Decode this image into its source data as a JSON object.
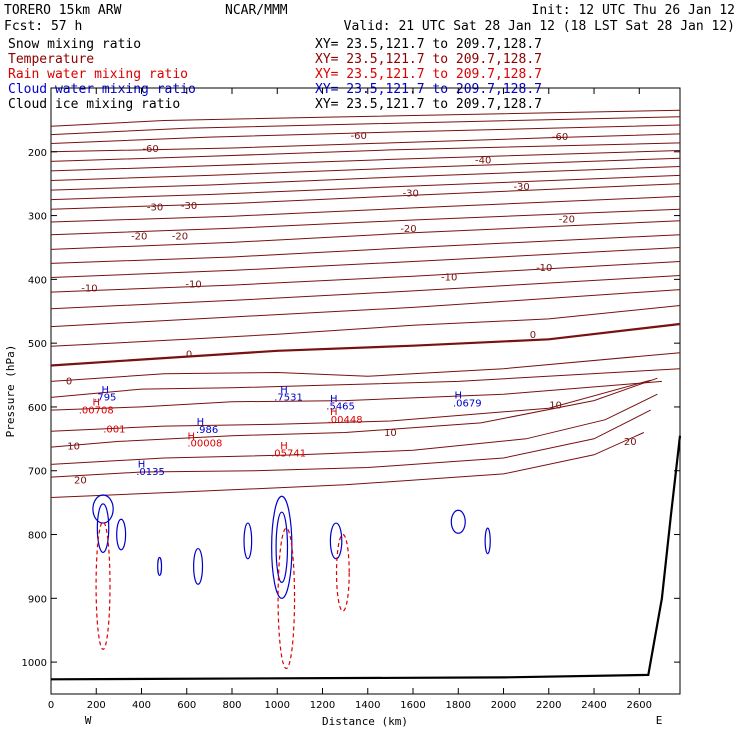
{
  "header": {
    "model": "TORERO  15km ARW",
    "center": "NCAR/MMM",
    "init": "Init: 12 UTC Thu 26 Jan 12",
    "fcst": "Fcst:   57 h",
    "valid": "Valid: 21 UTC Sat 28 Jan 12 (18 LST Sat 28 Jan 12)"
  },
  "fields": [
    {
      "name": "Snow mixing ratio",
      "xy": "XY=  23.5,121.7 to 209.7,128.7",
      "color": "#000000"
    },
    {
      "name": "Temperature",
      "xy": "XY=  23.5,121.7 to 209.7,128.7",
      "color": "#8b0000"
    },
    {
      "name": "Rain water mixing ratio",
      "xy": "XY=  23.5,121.7 to 209.7,128.7",
      "color": "#dd0000"
    },
    {
      "name": "Cloud water mixing ratio",
      "xy": "XY=  23.5,121.7 to 209.7,128.7",
      "color": "#0000cc"
    },
    {
      "name": "Cloud ice mixing ratio",
      "xy": "XY=  23.5,121.7 to 209.7,128.7",
      "color": "#000000"
    }
  ],
  "chart_data": {
    "type": "contour",
    "xlabel": "Distance (km)",
    "ylabel": "Pressure (hPa)",
    "xlim": [
      0,
      2780
    ],
    "ylim": [
      1050,
      100
    ],
    "xticks": [
      "0",
      "200",
      "400",
      "600",
      "800",
      "1000",
      "1200",
      "1400",
      "1600",
      "1800",
      "2000",
      "2200",
      "2400",
      "2600"
    ],
    "yticks": [
      "200",
      "300",
      "400",
      "500",
      "600",
      "700",
      "800",
      "900",
      "1000"
    ],
    "x_end_labels": {
      "left": "W",
      "right": "E"
    },
    "temperature_contours": [
      {
        "pts": [
          [
            0,
            200
          ],
          [
            800,
            194
          ],
          [
            1500,
            186
          ],
          [
            2200,
            178
          ],
          [
            2780,
            172
          ]
        ]
      },
      {
        "pts": [
          [
            0,
            187
          ],
          [
            700,
            177
          ],
          [
            1400,
            170
          ],
          [
            2780,
            158
          ]
        ]
      },
      {
        "pts": [
          [
            0,
            173
          ],
          [
            600,
            163
          ],
          [
            1300,
            157
          ],
          [
            2780,
            145
          ]
        ]
      },
      {
        "pts": [
          [
            0,
            160
          ],
          [
            500,
            151
          ],
          [
            1200,
            146
          ],
          [
            2780,
            135
          ]
        ]
      },
      {
        "pts": [
          [
            0,
            215
          ],
          [
            700,
            207
          ],
          [
            1500,
            197
          ],
          [
            2780,
            186
          ]
        ],
        "label": "-60",
        "at": [
          [
            440,
            196
          ],
          [
            1360,
            175
          ],
          [
            2250,
            177
          ]
        ]
      },
      {
        "pts": [
          [
            0,
            230
          ],
          [
            700,
            222
          ],
          [
            1500,
            212
          ],
          [
            2780,
            198
          ]
        ]
      },
      {
        "pts": [
          [
            0,
            245
          ],
          [
            700,
            237
          ],
          [
            1500,
            226
          ],
          [
            2780,
            210
          ]
        ]
      },
      {
        "pts": [
          [
            0,
            260
          ],
          [
            700,
            252
          ],
          [
            1500,
            240
          ],
          [
            2780,
            223
          ]
        ],
        "label": "-40",
        "at": [
          [
            1910,
            214
          ]
        ]
      },
      {
        "pts": [
          [
            0,
            275
          ],
          [
            700,
            267
          ],
          [
            1500,
            255
          ],
          [
            2780,
            237
          ]
        ]
      },
      {
        "pts": [
          [
            0,
            290
          ],
          [
            800,
            281
          ],
          [
            1600,
            268
          ],
          [
            2780,
            250
          ]
        ],
        "label": "-30",
        "at": [
          [
            460,
            287
          ],
          [
            610,
            285
          ],
          [
            1590,
            265
          ],
          [
            2080,
            255
          ]
        ]
      },
      {
        "pts": [
          [
            0,
            310
          ],
          [
            800,
            301
          ],
          [
            1600,
            288
          ],
          [
            2780,
            270
          ]
        ]
      },
      {
        "pts": [
          [
            0,
            330
          ],
          [
            800,
            320
          ],
          [
            1600,
            307
          ],
          [
            2780,
            290
          ]
        ]
      },
      {
        "pts": [
          [
            0,
            353
          ],
          [
            800,
            342
          ],
          [
            1600,
            327
          ],
          [
            2780,
            308
          ]
        ],
        "label": "-20",
        "at": [
          [
            390,
            333
          ],
          [
            570,
            333
          ],
          [
            1580,
            321
          ],
          [
            2280,
            306
          ]
        ]
      },
      {
        "pts": [
          [
            0,
            375
          ],
          [
            800,
            365
          ],
          [
            1600,
            350
          ],
          [
            2780,
            330
          ]
        ]
      },
      {
        "pts": [
          [
            0,
            397
          ],
          [
            800,
            386
          ],
          [
            1600,
            372
          ],
          [
            2780,
            350
          ]
        ]
      },
      {
        "pts": [
          [
            0,
            420
          ],
          [
            800,
            409
          ],
          [
            1600,
            395
          ],
          [
            2780,
            372
          ]
        ],
        "label": "-10",
        "at": [
          [
            170,
            414
          ],
          [
            630,
            408
          ],
          [
            1760,
            397
          ],
          [
            2180,
            382
          ]
        ]
      },
      {
        "pts": [
          [
            0,
            446
          ],
          [
            800,
            433
          ],
          [
            1600,
            418
          ],
          [
            2780,
            394
          ]
        ]
      },
      {
        "pts": [
          [
            0,
            474
          ],
          [
            800,
            459
          ],
          [
            1600,
            444
          ],
          [
            2780,
            416
          ]
        ]
      },
      {
        "pts": [
          [
            0,
            505
          ],
          [
            600,
            494
          ],
          [
            1000,
            486
          ],
          [
            1600,
            472
          ],
          [
            2200,
            462
          ],
          [
            2780,
            441
          ]
        ]
      },
      {
        "pts": [
          [
            0,
            535
          ],
          [
            600,
            521
          ],
          [
            1000,
            512
          ],
          [
            1600,
            504
          ],
          [
            2200,
            494
          ],
          [
            2780,
            470
          ]
        ],
        "label": "0",
        "at": [
          [
            610,
            518
          ],
          [
            2130,
            487
          ]
        ],
        "bold": true
      },
      {
        "pts": [
          [
            0,
            560
          ],
          [
            500,
            548
          ],
          [
            1000,
            546
          ],
          [
            1400,
            552
          ],
          [
            2000,
            540
          ],
          [
            2780,
            515
          ]
        ],
        "label": "0",
        "at": [
          [
            80,
            560
          ]
        ]
      },
      {
        "pts": [
          [
            0,
            585
          ],
          [
            400,
            572
          ],
          [
            800,
            570
          ],
          [
            1200,
            566
          ],
          [
            1800,
            560
          ],
          [
            2780,
            540
          ]
        ]
      },
      {
        "pts": [
          [
            0,
            605
          ],
          [
            400,
            600
          ],
          [
            800,
            592
          ],
          [
            1300,
            590
          ],
          [
            2000,
            580
          ],
          [
            2700,
            560
          ]
        ]
      },
      {
        "pts": [
          [
            0,
            638
          ],
          [
            500,
            630
          ],
          [
            1000,
            627
          ],
          [
            1500,
            622
          ],
          [
            2200,
            602
          ],
          [
            2650,
            558
          ]
        ]
      },
      {
        "pts": [
          [
            0,
            663
          ],
          [
            300,
            654
          ],
          [
            800,
            645
          ],
          [
            1300,
            640
          ],
          [
            1900,
            625
          ],
          [
            2400,
            590
          ],
          [
            2680,
            555
          ]
        ],
        "label": "10",
        "at": [
          [
            100,
            662
          ],
          [
            1500,
            641
          ],
          [
            2230,
            598
          ]
        ]
      },
      {
        "pts": [
          [
            0,
            690
          ],
          [
            500,
            680
          ],
          [
            1100,
            675
          ],
          [
            1600,
            668
          ],
          [
            2100,
            650
          ],
          [
            2450,
            620
          ],
          [
            2680,
            580
          ]
        ]
      },
      {
        "pts": [
          [
            0,
            710
          ],
          [
            400,
            702
          ],
          [
            900,
            700
          ],
          [
            1400,
            695
          ],
          [
            2000,
            680
          ],
          [
            2400,
            650
          ],
          [
            2650,
            605
          ]
        ],
        "label": "20",
        "at": [
          [
            130,
            715
          ],
          [
            2560,
            655
          ]
        ]
      },
      {
        "pts": [
          [
            0,
            742
          ],
          [
            600,
            733
          ],
          [
            1300,
            722
          ],
          [
            2000,
            705
          ],
          [
            2400,
            675
          ],
          [
            2620,
            640
          ]
        ]
      }
    ],
    "annotations": [
      {
        "text": "H",
        "x": 240,
        "y": 578,
        "color": "#0000cc"
      },
      {
        "text": ".795",
        "x": 240,
        "y": 590,
        "color": "#0000cc"
      },
      {
        "text": "H",
        "x": 200,
        "y": 598,
        "color": "#dd0000"
      },
      {
        "text": ".00708",
        "x": 200,
        "y": 610,
        "color": "#dd0000"
      },
      {
        "text": ".001",
        "x": 280,
        "y": 640,
        "color": "#dd0000"
      },
      {
        "text": "H",
        "x": 660,
        "y": 628,
        "color": "#0000cc"
      },
      {
        "text": ".986",
        "x": 690,
        "y": 641,
        "color": "#0000cc"
      },
      {
        "text": "H",
        "x": 620,
        "y": 651,
        "color": "#dd0000"
      },
      {
        "text": ".00008",
        "x": 680,
        "y": 662,
        "color": "#dd0000"
      },
      {
        "text": "H",
        "x": 400,
        "y": 695,
        "color": "#0000cc"
      },
      {
        "text": ".0135",
        "x": 440,
        "y": 707,
        "color": "#0000cc"
      },
      {
        "text": "H",
        "x": 1030,
        "y": 578,
        "color": "#0000cc"
      },
      {
        "text": ".7531",
        "x": 1050,
        "y": 590,
        "color": "#0000cc"
      },
      {
        "text": "H",
        "x": 1030,
        "y": 666,
        "color": "#dd0000"
      },
      {
        "text": ".05741",
        "x": 1050,
        "y": 678,
        "color": "#dd0000"
      },
      {
        "text": "H",
        "x": 1250,
        "y": 592,
        "color": "#0000cc"
      },
      {
        "text": ".5465",
        "x": 1280,
        "y": 604,
        "color": "#0000cc"
      },
      {
        "text": "H",
        "x": 1250,
        "y": 613,
        "color": "#dd0000"
      },
      {
        "text": ".00448",
        "x": 1300,
        "y": 625,
        "color": "#dd0000"
      },
      {
        "text": "H",
        "x": 1800,
        "y": 587,
        "color": "#0000cc"
      },
      {
        "text": ".0679",
        "x": 1840,
        "y": 599,
        "color": "#0000cc"
      }
    ]
  }
}
